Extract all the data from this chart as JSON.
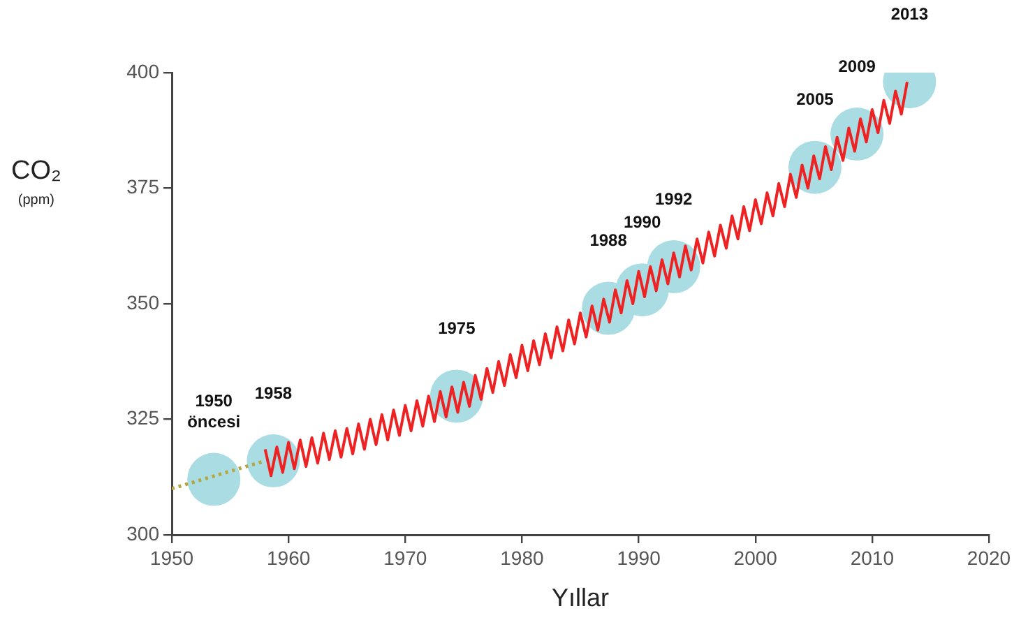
{
  "chart_data": {
    "type": "line",
    "xlabel": "Yıllar",
    "ylabel": "CO₂ (ppm)",
    "xlim": [
      1950,
      2020
    ],
    "xticks": [
      1950,
      1960,
      1970,
      1980,
      1990,
      2000,
      2010,
      2020
    ],
    "ylim": [
      300,
      400
    ],
    "yticks": [
      300,
      325,
      350,
      375,
      400
    ],
    "grid": false,
    "legend": false,
    "series": [
      {
        "type": "scatter",
        "color": "#a9dce3",
        "marker": "circle",
        "x": [
          1953.6,
          1958.7,
          1974.4,
          1987.4,
          1990.3,
          1993,
          2005.1,
          2008.7,
          2013.2
        ],
        "values": [
          312,
          316,
          330,
          349,
          353,
          358,
          379.5,
          386.7,
          398
        ]
      },
      {
        "color": "#b5a642",
        "line_style": "dotted",
        "marker": "none",
        "x": [
          1950,
          1958
        ],
        "values": [
          310,
          316
        ]
      },
      {
        "color": "#ee2222",
        "line_style": "solid",
        "marker": "none",
        "x": [
          1958,
          1958.5,
          1959,
          1959.5,
          1960,
          1960.5,
          1961,
          1961.5,
          1962,
          1962.5,
          1963,
          1963.5,
          1964,
          1964.5,
          1965,
          1965.5,
          1966,
          1966.5,
          1967,
          1967.5,
          1968,
          1968.5,
          1969,
          1969.5,
          1970,
          1970.5,
          1971,
          1971.5,
          1972,
          1972.5,
          1973,
          1973.5,
          1974,
          1974.5,
          1975,
          1975.5,
          1976,
          1976.5,
          1977,
          1977.5,
          1978,
          1978.5,
          1979,
          1979.5,
          1980,
          1980.5,
          1981,
          1981.5,
          1982,
          1982.5,
          1983,
          1983.5,
          1984,
          1984.5,
          1985,
          1985.5,
          1986,
          1986.5,
          1987,
          1987.5,
          1988,
          1988.5,
          1989,
          1989.5,
          1990,
          1990.5,
          1991,
          1991.5,
          1992,
          1992.5,
          1993,
          1993.5,
          1994,
          1994.5,
          1995,
          1995.5,
          1996,
          1996.5,
          1997,
          1997.5,
          1998,
          1998.5,
          1999,
          1999.5,
          2000,
          2000.5,
          2001,
          2001.5,
          2002,
          2002.5,
          2003,
          2003.5,
          2004,
          2004.5,
          2005,
          2005.5,
          2006,
          2006.5,
          2007,
          2007.5,
          2008,
          2008.5,
          2009,
          2009.5,
          2010,
          2010.5,
          2011,
          2011.5,
          2012,
          2012.5,
          2013
        ],
        "values": [
          318.5,
          312.8,
          319,
          313.5,
          320,
          314.3,
          320.5,
          314.8,
          321,
          315.5,
          322,
          316.3,
          322.5,
          316.8,
          323,
          317.5,
          324,
          318.5,
          325,
          319.5,
          326,
          320.5,
          327,
          321.5,
          328,
          322.5,
          329,
          323.5,
          330,
          324.5,
          331,
          325.5,
          332,
          326.5,
          333,
          327.8,
          334.5,
          329.3,
          336,
          330.8,
          337.5,
          332.3,
          339,
          334,
          341,
          335.5,
          342,
          336.8,
          343.5,
          338.3,
          345,
          339.8,
          346.5,
          341.3,
          348,
          342.8,
          349.5,
          344.3,
          351,
          346,
          353,
          348,
          355,
          350,
          357,
          351.5,
          358,
          352.8,
          359.5,
          354.3,
          361,
          355.8,
          362.5,
          357.3,
          364,
          358.8,
          365.5,
          360.3,
          367,
          362,
          369,
          364,
          371,
          365.8,
          372.5,
          367.3,
          374,
          369,
          376,
          371,
          378,
          373,
          380,
          375,
          382,
          377,
          384,
          379,
          386,
          381,
          388,
          383,
          390,
          385,
          392,
          387,
          394,
          389,
          396,
          391,
          398
        ]
      }
    ],
    "annotations": [
      "1950 öncesi",
      "1958",
      "1975",
      "1988",
      "1990",
      "1992",
      "2005",
      "2009",
      "2013"
    ]
  }
}
